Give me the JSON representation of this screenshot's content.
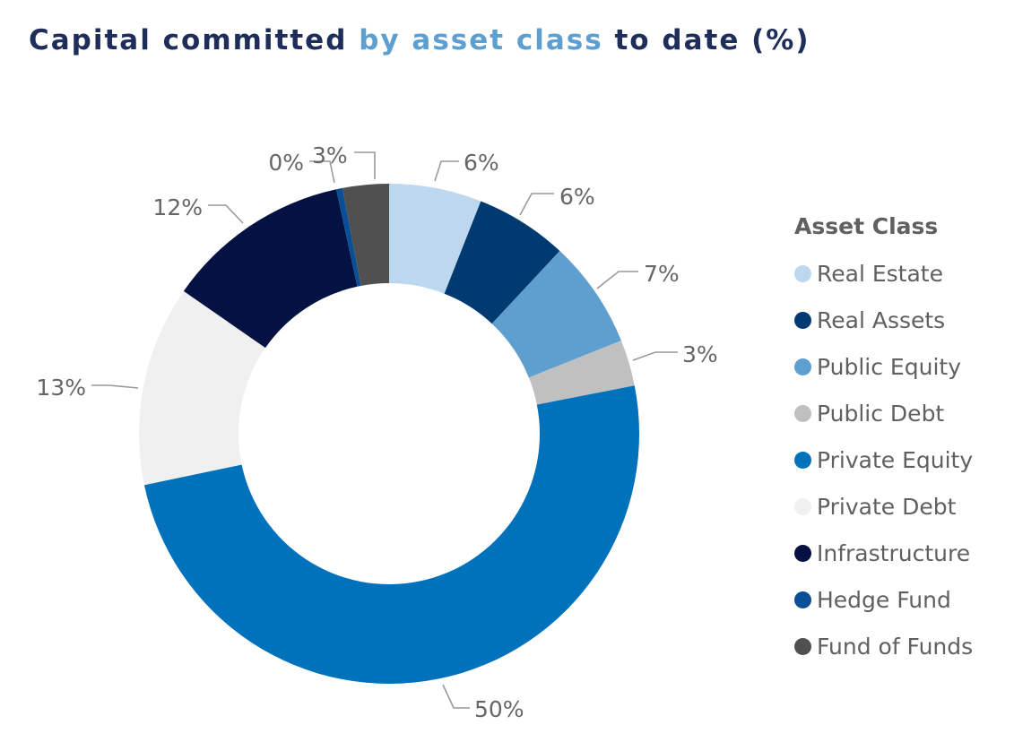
{
  "title": {
    "part1": "Capital committed ",
    "part2": "by asset class",
    "part3": " to date (%)",
    "color": "#1f2d5a",
    "accent_color": "#5e9fd1"
  },
  "legend": {
    "title": "Asset Class"
  },
  "chart_data": {
    "type": "pie",
    "variant": "donut",
    "title": "Capital committed by asset class to date (%)",
    "unit": "%",
    "legend_title": "Asset Class",
    "legend_position": "right",
    "slices": [
      {
        "name": "Real Estate",
        "value": 6,
        "label": "6%",
        "color": "#bdd7ee"
      },
      {
        "name": "Real Assets",
        "value": 6,
        "label": "6%",
        "color": "#003a70"
      },
      {
        "name": "Public Equity",
        "value": 7,
        "label": "7%",
        "color": "#5f9fcf"
      },
      {
        "name": "Public Debt",
        "value": 3,
        "label": "3%",
        "color": "#c0c0c0"
      },
      {
        "name": "Private Equity",
        "value": 50,
        "label": "50%",
        "color": "#0072bc"
      },
      {
        "name": "Private Debt",
        "value": 13,
        "label": "13%",
        "color": "#f0f0f0"
      },
      {
        "name": "Infrastructure",
        "value": 12,
        "label": "12%",
        "color": "#041243"
      },
      {
        "name": "Hedge Fund",
        "value": 0.4,
        "label": "0%",
        "color": "#0a4f96"
      },
      {
        "name": "Fund of Funds",
        "value": 3,
        "label": "3%",
        "color": "#505050"
      }
    ]
  }
}
